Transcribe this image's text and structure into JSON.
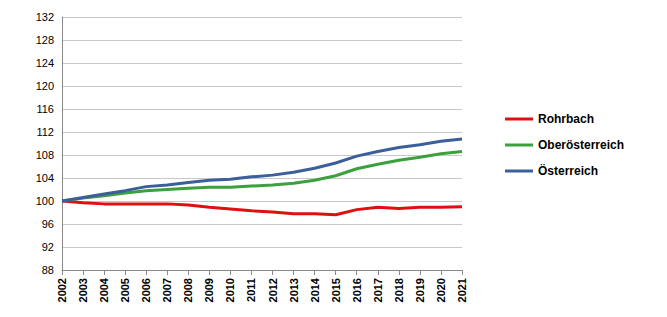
{
  "chart_data": {
    "type": "line",
    "categories": [
      "2002",
      "2003",
      "2004",
      "2005",
      "2006",
      "2007",
      "2008",
      "2009",
      "2010",
      "2011",
      "2012",
      "2013",
      "2014",
      "2015",
      "2016",
      "2017",
      "2018",
      "2019",
      "2020",
      "2021"
    ],
    "series": [
      {
        "name": "Rohrbach",
        "color": "#e01010",
        "values": [
          100,
          99.7,
          99.5,
          99.5,
          99.5,
          99.5,
          99.3,
          98.9,
          98.6,
          98.3,
          98.1,
          97.8,
          97.8,
          97.6,
          98.5,
          98.9,
          98.7,
          98.9,
          98.9,
          99.0
        ]
      },
      {
        "name": "Oberösterreich",
        "color": "#3ca03c",
        "values": [
          100,
          100.5,
          100.9,
          101.4,
          101.8,
          102.0,
          102.2,
          102.4,
          102.4,
          102.6,
          102.8,
          103.1,
          103.6,
          104.4,
          105.6,
          106.4,
          107.1,
          107.6,
          108.2,
          108.6
        ]
      },
      {
        "name": "Österreich",
        "color": "#3a5f9a",
        "values": [
          100,
          100.6,
          101.2,
          101.8,
          102.5,
          102.8,
          103.2,
          103.6,
          103.8,
          104.2,
          104.5,
          105.0,
          105.7,
          106.6,
          107.8,
          108.6,
          109.3,
          109.8,
          110.4,
          110.8
        ]
      }
    ],
    "ylim": [
      88,
      132
    ],
    "yticks": [
      88,
      92,
      96,
      100,
      104,
      108,
      112,
      116,
      120,
      124,
      128,
      132
    ],
    "grid": true,
    "legend": "right"
  }
}
